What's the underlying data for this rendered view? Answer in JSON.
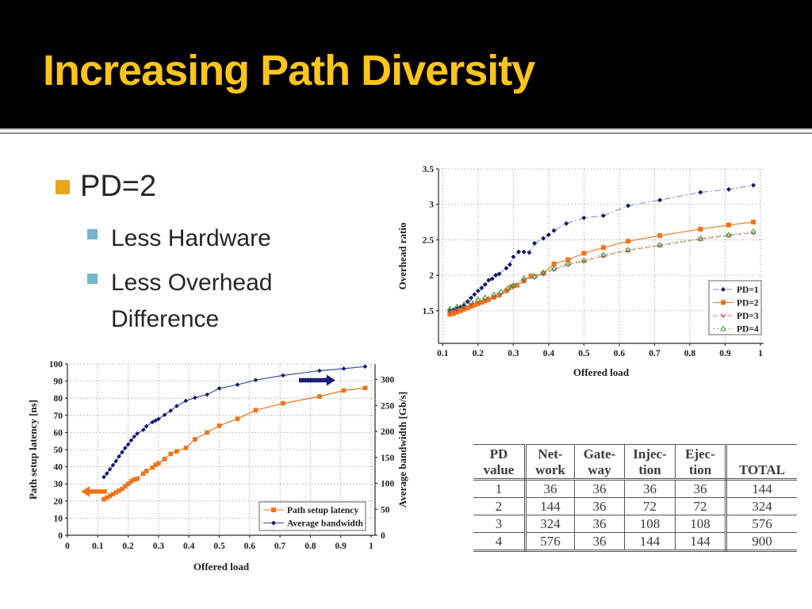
{
  "slide": {
    "title": "Increasing Path Diversity",
    "bullets": [
      {
        "level": 1,
        "text": "PD=2"
      },
      {
        "level": 2,
        "text": "Less Hardware"
      },
      {
        "level": 2,
        "text": "Less Overhead Difference"
      }
    ]
  },
  "colors": {
    "title": "#FCC41D",
    "bullet_level1": "#E8A61E",
    "bullet_level2": "#75B5CE",
    "body_text": "#262626",
    "navy": "#16166B",
    "orange": "#F07318",
    "salmon": "#CC3333",
    "green": "#3F9B3F"
  },
  "chart_data": [
    {
      "type": "line",
      "title": "",
      "xlabel": "Offered load",
      "ylabel": "Overhead ratio",
      "xlim": [
        0.088,
        1.009
      ],
      "ylim": [
        1.04,
        3.5
      ],
      "grid": true,
      "legend_position": "right-middle",
      "xticks": [
        "0.1",
        "0.2",
        "0.3",
        "0.4",
        "0.5",
        "0.6",
        "0.7",
        "0.8",
        "0.9",
        "1"
      ],
      "yticks": [
        "1.5",
        "2",
        "2.5",
        "3",
        "3.5"
      ],
      "series": [
        {
          "name": "PD=1",
          "marker": "diamond",
          "color": "#16166B",
          "line_color": "#8A8AC0",
          "dash": "dashdot",
          "x": [
            0.12,
            0.13,
            0.14,
            0.15,
            0.16,
            0.17,
            0.18,
            0.19,
            0.2,
            0.21,
            0.22,
            0.23,
            0.24,
            0.25,
            0.26,
            0.28,
            0.29,
            0.3,
            0.315,
            0.33,
            0.345,
            0.36,
            0.385,
            0.4,
            0.415,
            0.45,
            0.5,
            0.555,
            0.625,
            0.715,
            0.83,
            0.91,
            0.98
          ],
          "y": [
            1.5,
            1.51,
            1.53,
            1.55,
            1.57,
            1.63,
            1.68,
            1.73,
            1.78,
            1.82,
            1.87,
            1.93,
            1.95,
            2.0,
            2.02,
            2.1,
            2.15,
            2.26,
            2.33,
            2.33,
            2.32,
            2.45,
            2.52,
            2.57,
            2.63,
            2.73,
            2.81,
            2.84,
            2.98,
            3.06,
            3.17,
            3.21,
            3.27
          ]
        },
        {
          "name": "PD=2",
          "marker": "square",
          "color": "#F07318",
          "line_color": "#F07318",
          "dash": "solid",
          "x": [
            0.12,
            0.13,
            0.14,
            0.15,
            0.16,
            0.17,
            0.18,
            0.19,
            0.2,
            0.21,
            0.22,
            0.23,
            0.245,
            0.26,
            0.28,
            0.295,
            0.31,
            0.33,
            0.35,
            0.385,
            0.415,
            0.455,
            0.5,
            0.555,
            0.625,
            0.715,
            0.83,
            0.91,
            0.98
          ],
          "y": [
            1.45,
            1.46,
            1.48,
            1.5,
            1.52,
            1.54,
            1.56,
            1.58,
            1.6,
            1.62,
            1.64,
            1.66,
            1.69,
            1.72,
            1.78,
            1.84,
            1.86,
            1.92,
            1.99,
            2.03,
            2.16,
            2.22,
            2.31,
            2.39,
            2.48,
            2.56,
            2.65,
            2.71,
            2.75
          ]
        },
        {
          "name": "PD=3",
          "marker": "v",
          "color": "#CC3333",
          "line_color": "#E08080",
          "dash": "dash",
          "x": [
            0.12,
            0.14,
            0.16,
            0.18,
            0.2,
            0.22,
            0.245,
            0.265,
            0.285,
            0.3,
            0.33,
            0.36,
            0.385,
            0.415,
            0.455,
            0.5,
            0.555,
            0.625,
            0.715,
            0.83,
            0.91,
            0.98
          ],
          "y": [
            1.49,
            1.52,
            1.55,
            1.6,
            1.63,
            1.66,
            1.7,
            1.74,
            1.8,
            1.84,
            1.93,
            1.97,
            2.02,
            2.08,
            2.15,
            2.2,
            2.27,
            2.35,
            2.42,
            2.51,
            2.56,
            2.6
          ]
        },
        {
          "name": "PD=4",
          "marker": "triangle",
          "color": "#3F9B3F",
          "line_color": "#88B478",
          "dash": "dot",
          "x": [
            0.12,
            0.14,
            0.16,
            0.18,
            0.2,
            0.22,
            0.245,
            0.265,
            0.285,
            0.3,
            0.33,
            0.36,
            0.385,
            0.415,
            0.455,
            0.5,
            0.555,
            0.625,
            0.715,
            0.83,
            0.91,
            0.98
          ],
          "y": [
            1.53,
            1.56,
            1.59,
            1.63,
            1.66,
            1.69,
            1.73,
            1.77,
            1.82,
            1.86,
            1.96,
            1.99,
            2.04,
            2.1,
            2.17,
            2.21,
            2.29,
            2.36,
            2.43,
            2.52,
            2.57,
            2.62
          ]
        }
      ]
    },
    {
      "type": "line",
      "title": "",
      "xlabel": "Offered load",
      "ylabel": "Path setup latency [ns]",
      "ylabel_right": "Average bandwidth [Gb/s]",
      "xlim": [
        0,
        1.013
      ],
      "ylim": [
        0,
        100
      ],
      "ylim_right": [
        0,
        330
      ],
      "grid": true,
      "legend_position": "bottom-right",
      "xticks": [
        "0",
        "0.1",
        "0.2",
        "0.3",
        "0.4",
        "0.5",
        "0.6",
        "0.7",
        "0.8",
        "0.9",
        "1"
      ],
      "yticks": [
        "0",
        "10",
        "20",
        "30",
        "40",
        "50",
        "60",
        "70",
        "80",
        "90",
        "100"
      ],
      "yticks_right": [
        "0",
        "50",
        "100",
        "150",
        "200",
        "250",
        "300"
      ],
      "series": [
        {
          "name": "Path setup latency",
          "marker": "square",
          "color": "#F07318",
          "line_color": "#F07318",
          "dash": "solid",
          "axis": "left",
          "x": [
            0.12,
            0.13,
            0.14,
            0.15,
            0.16,
            0.17,
            0.18,
            0.19,
            0.2,
            0.21,
            0.22,
            0.23,
            0.25,
            0.26,
            0.28,
            0.29,
            0.3,
            0.32,
            0.34,
            0.36,
            0.39,
            0.42,
            0.46,
            0.5,
            0.56,
            0.62,
            0.71,
            0.83,
            0.91,
            0.98
          ],
          "y": [
            21,
            22,
            23,
            24,
            25,
            26,
            27,
            28.5,
            30,
            31.5,
            32.5,
            33,
            36,
            37.5,
            39.5,
            41,
            42,
            44.5,
            47.5,
            49,
            51,
            56,
            60,
            64,
            68,
            73,
            77,
            81,
            84.5,
            86
          ]
        },
        {
          "name": "Average bandwidth",
          "marker": "diamond",
          "color": "#14146E",
          "line_color": "#4848A0",
          "dash": "solid",
          "axis": "right",
          "x": [
            0.12,
            0.13,
            0.14,
            0.15,
            0.16,
            0.17,
            0.18,
            0.19,
            0.2,
            0.21,
            0.22,
            0.23,
            0.25,
            0.26,
            0.28,
            0.29,
            0.3,
            0.32,
            0.34,
            0.36,
            0.39,
            0.42,
            0.46,
            0.5,
            0.56,
            0.62,
            0.71,
            0.83,
            0.91,
            0.98
          ],
          "y": [
            112,
            119,
            127,
            135,
            143,
            152,
            160,
            168,
            175,
            183,
            190,
            196,
            203,
            210,
            218,
            221,
            224,
            232,
            240,
            249,
            259,
            265,
            271,
            283,
            290,
            299,
            308,
            317,
            321,
            325
          ]
        }
      ],
      "annotations": [
        {
          "shape": "arrow",
          "color": "#F07318",
          "x1": 0.13,
          "x2": 0.045,
          "y": 25.5
        },
        {
          "shape": "arrow",
          "color": "#1C1C78",
          "x1": 0.762,
          "x2": 0.882,
          "y": 90.5
        }
      ]
    },
    {
      "type": "table",
      "headers": [
        [
          "PD",
          "value"
        ],
        [
          "Net-",
          "work"
        ],
        [
          "Gate-",
          "way"
        ],
        [
          "Injec-",
          "tion"
        ],
        [
          "Ejec-",
          "tion"
        ],
        [
          "TOTAL"
        ]
      ],
      "rows": [
        [
          "1",
          "36",
          "36",
          "36",
          "36",
          "144"
        ],
        [
          "2",
          "144",
          "36",
          "72",
          "72",
          "324"
        ],
        [
          "3",
          "324",
          "36",
          "108",
          "108",
          "576"
        ],
        [
          "4",
          "576",
          "36",
          "144",
          "144",
          "900"
        ]
      ]
    }
  ]
}
